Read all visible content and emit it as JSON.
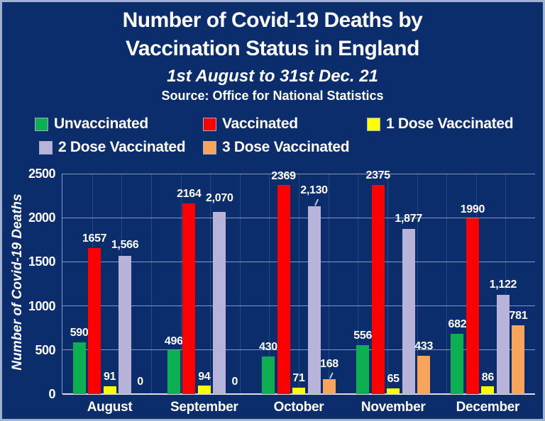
{
  "window": {
    "background_color": "#0C2D6B",
    "border_color": "#9FB2CF"
  },
  "header": {
    "title_line1": "Number of Covid-19 Deaths by",
    "title_line2": "Vaccination Status in England",
    "subtitle": "1st August to 31st Dec. 21",
    "source": "Source: Office for National Statistics"
  },
  "chart_data": {
    "type": "bar",
    "title": "Number of Covid-19 Deaths by Vaccination Status in England",
    "subtitle": "1st August to 31st Dec. 21",
    "source": "Source: Office for National Statistics",
    "categories": [
      "August",
      "September",
      "October",
      "November",
      "December"
    ],
    "series": [
      {
        "name": "Unvaccinated",
        "color": "#0CB053",
        "values": [
          590,
          496,
          430,
          556,
          682
        ],
        "labels": [
          "590",
          "496",
          "430",
          "556",
          "682"
        ],
        "label_raise": [
          4,
          4,
          4,
          4,
          4
        ]
      },
      {
        "name": "Vaccinated",
        "color": "#FF0000",
        "values": [
          1657,
          2164,
          2369,
          2375,
          1990
        ],
        "labels": [
          "1657",
          "2164",
          "2369",
          "2375",
          "1990"
        ],
        "label_raise": [
          4,
          4,
          4,
          4,
          4
        ]
      },
      {
        "name": "1 Dose Vaccinated",
        "color": "#FFFF00",
        "values": [
          91,
          94,
          71,
          65,
          86
        ],
        "labels": [
          "91",
          "94",
          "71",
          "65",
          "86"
        ],
        "label_raise": [
          4,
          4,
          4,
          4,
          4
        ]
      },
      {
        "name": "2 Dose Vaccinated",
        "color": "#B8B3D8",
        "values": [
          1566,
          2070,
          2130,
          1877,
          1122
        ],
        "labels": [
          "1,566",
          "2,070",
          "2,130",
          "1,877",
          "1,122"
        ],
        "label_raise": [
          6,
          10,
          13,
          5,
          6
        ]
      },
      {
        "name": "3 Dose Vaccinated",
        "color": "#F9A45B",
        "values": [
          0,
          0,
          168,
          433,
          781
        ],
        "labels": [
          "0",
          "0",
          "168",
          "433",
          "781"
        ],
        "label_raise": [
          8,
          8,
          12,
          4,
          4
        ]
      }
    ],
    "xlabel": "",
    "ylabel": "Number of Covid-19 Deaths",
    "ylim": [
      0,
      2500
    ],
    "yticks": [
      0,
      500,
      1000,
      1500,
      2000,
      2500
    ],
    "ytick_labels": [
      "0",
      "500",
      "1000",
      "1500",
      "2000",
      "2500"
    ],
    "grid": true,
    "legend_position": "top",
    "legend_rows": [
      [
        0,
        1,
        2
      ],
      [
        3,
        4
      ]
    ],
    "leader_lines": [
      {
        "series": 3,
        "category": 2
      },
      {
        "series": 4,
        "category": 2
      }
    ]
  }
}
